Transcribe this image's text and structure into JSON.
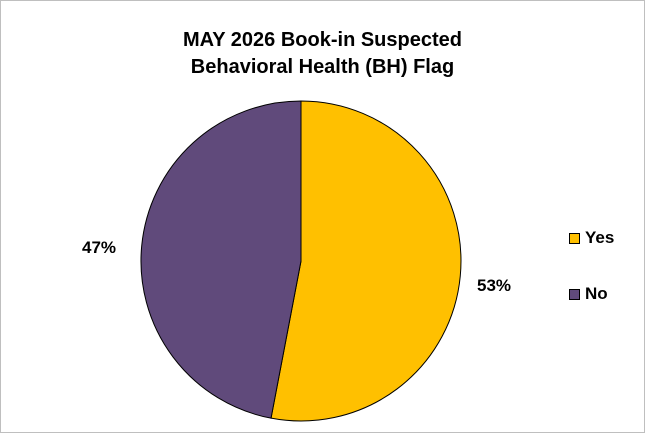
{
  "chart_data": {
    "type": "pie",
    "title_lines": [
      "MAY 2026 Book-in Suspected",
      "Behavioral Health (BH) Flag"
    ],
    "categories": [
      "Yes",
      "No"
    ],
    "values": [
      53,
      47
    ],
    "labels": [
      "53%",
      "47%"
    ],
    "colors": [
      "#FFC000",
      "#604A7B"
    ],
    "legend_position": "right",
    "start_angle": "12 o'clock",
    "direction": "clockwise"
  }
}
